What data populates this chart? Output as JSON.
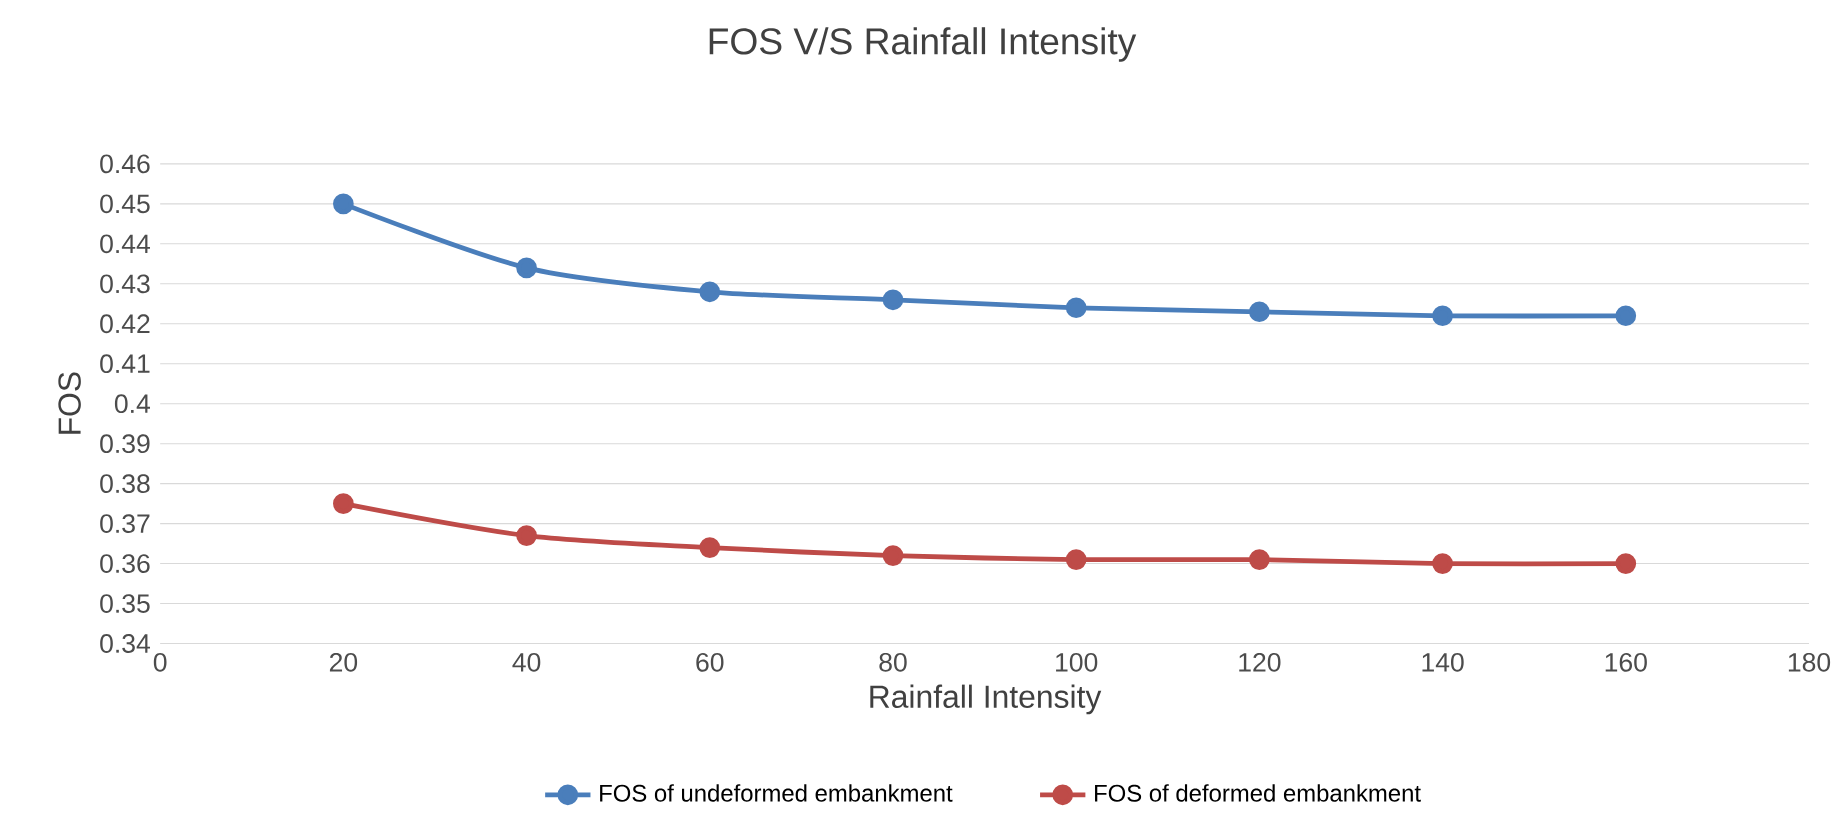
{
  "chart_data": {
    "type": "line",
    "title": "FOS V/S Rainfall Intensity",
    "xlabel": "Rainfall Intensity",
    "ylabel": "FOS",
    "x": [
      20,
      40,
      60,
      80,
      100,
      120,
      140,
      160
    ],
    "series": [
      {
        "name": "FOS of undeformed embankment",
        "color": "#4a7ebb",
        "values": [
          0.45,
          0.434,
          0.428,
          0.426,
          0.424,
          0.423,
          0.422,
          0.422
        ]
      },
      {
        "name": "FOS of deformed embankment",
        "color": "#be4b48",
        "values": [
          0.375,
          0.367,
          0.364,
          0.362,
          0.361,
          0.361,
          0.36,
          0.36
        ]
      }
    ],
    "xlim": [
      0,
      180
    ],
    "xticks": [
      0,
      20,
      40,
      60,
      80,
      100,
      120,
      140,
      160,
      180
    ],
    "ylim": [
      0.34,
      0.46
    ],
    "yticks": [
      0.34,
      0.35,
      0.36,
      0.37,
      0.38,
      0.39,
      0.4,
      0.41,
      0.42,
      0.43,
      0.44,
      0.45,
      0.46
    ],
    "grid": "y",
    "legend": "bottom",
    "marker": "circle",
    "line_style": "solid"
  }
}
